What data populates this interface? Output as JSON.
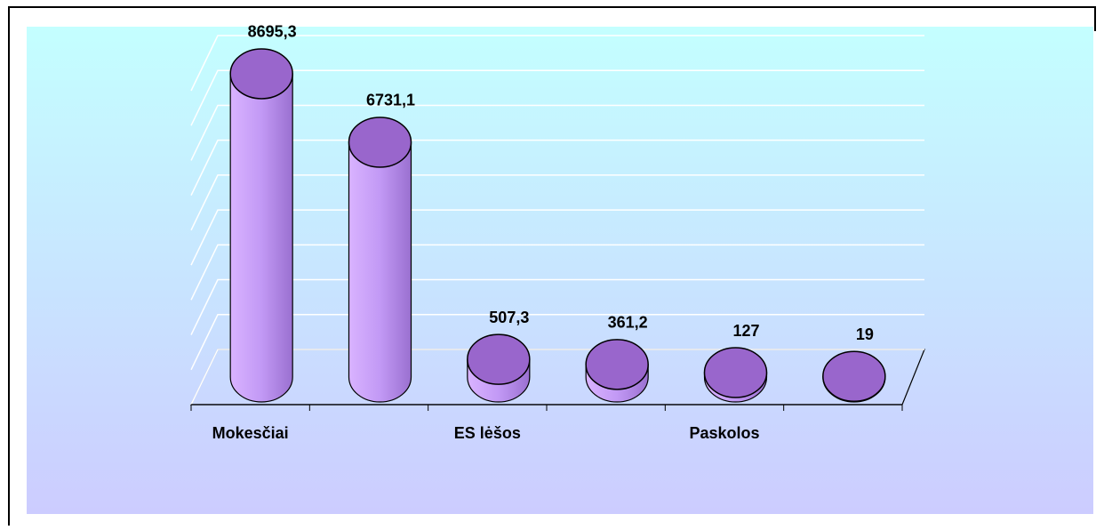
{
  "chart_data": {
    "type": "bar3d",
    "categories": [
      "Mokesčiai",
      null,
      "ES lėšos",
      null,
      "Paskolos",
      null
    ],
    "values": [
      8695.3,
      6731.1,
      507.3,
      361.2,
      127,
      19
    ],
    "value_labels": [
      "8695,3",
      "6731,1",
      "507,3",
      "361,2",
      "127",
      "19"
    ],
    "color": "#9966cc",
    "ylim": [
      0,
      9000
    ],
    "yticks": [
      0,
      1000,
      2000,
      3000,
      4000,
      5000,
      6000,
      7000,
      8000,
      9000
    ],
    "grid": true
  }
}
